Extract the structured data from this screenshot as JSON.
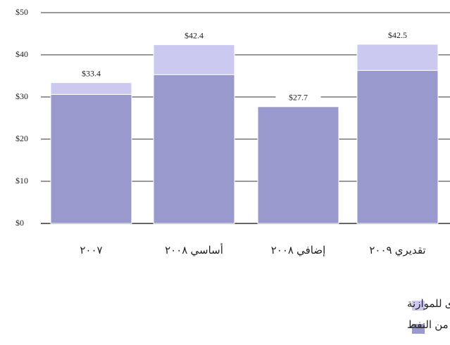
{
  "chart_data": {
    "type": "stacked_bar",
    "categories": [
      "٢٠٠٧",
      "أساسي ٢٠٠٨",
      "إضافي ٢٠٠٨",
      "تقديري ٢٠٠٩"
    ],
    "series": [
      {
        "name": "واردات الموازنة من النفط",
        "color": "#9a99cd",
        "values": [
          30.6,
          35.3,
          27.7,
          36.3
        ]
      },
      {
        "name": "واردات أخرى للموازنة",
        "color": "#cbc9f0",
        "values": [
          2.8,
          7.1,
          0,
          6.2
        ]
      }
    ],
    "totals": [
      33.4,
      42.4,
      27.7,
      42.5
    ],
    "total_labels": [
      "$33.4",
      "$42.4",
      "$27.7",
      "$42.5"
    ],
    "ylim": [
      0,
      50
    ],
    "yticks": [
      {
        "value": 0,
        "label": "$0"
      },
      {
        "value": 10,
        "label": "$10"
      },
      {
        "value": 20,
        "label": "$20"
      },
      {
        "value": 30,
        "label": "$30"
      },
      {
        "value": 40,
        "label": "$40"
      },
      {
        "value": 50,
        "label": "$50"
      }
    ],
    "grid": true
  }
}
